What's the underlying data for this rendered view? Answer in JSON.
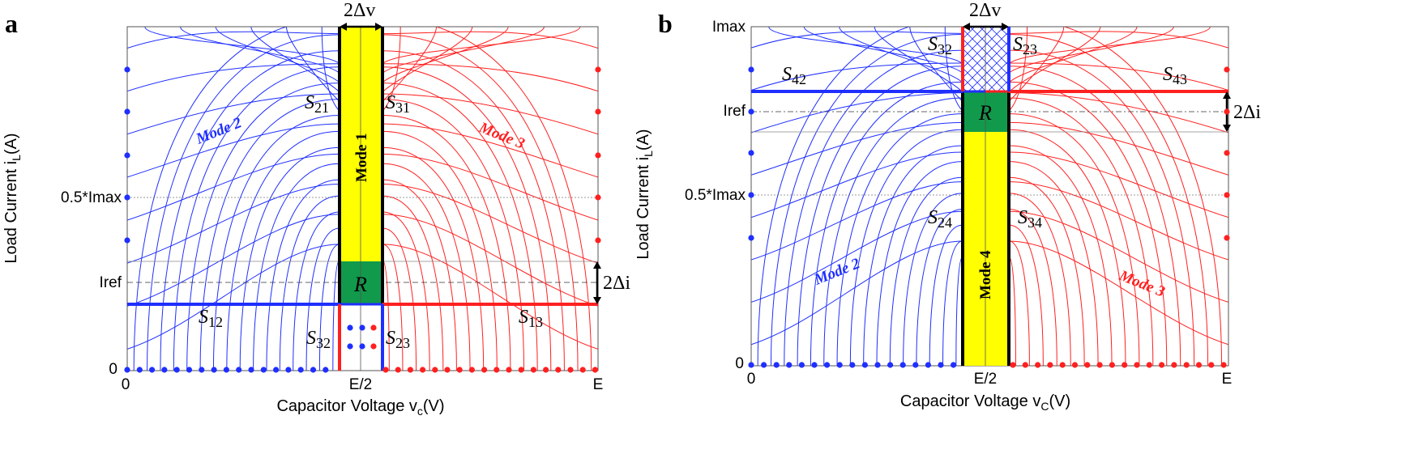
{
  "colors": {
    "blue": "#1f2fff",
    "red": "#ff2020",
    "yellow": "#ffff00",
    "green": "#119a4c",
    "black": "#000000"
  },
  "panels": [
    {
      "id": "a",
      "label": "a",
      "x_label": "Capacitor Voltage v",
      "x_label_sub": "c",
      "x_label_unit": "(V)",
      "y_label": "Load Current i",
      "y_label_sub": "L",
      "y_label_unit": "(A)",
      "x_ticks": [
        "0",
        "E/2",
        "E"
      ],
      "y_ticks": [
        "0",
        "Iref",
        "0.5*Imax"
      ],
      "band_width_label": "2Δv",
      "band_height_label": "2Δi",
      "region_label": "R",
      "center_mode": "Mode 1",
      "left_mode": "Mode 2",
      "right_mode": "Mode 3",
      "switch_labels": [
        {
          "main": "S",
          "sub": "21"
        },
        {
          "main": "S",
          "sub": "31"
        },
        {
          "main": "S",
          "sub": "12"
        },
        {
          "main": "S",
          "sub": "13"
        },
        {
          "main": "S",
          "sub": "32"
        },
        {
          "main": "S",
          "sub": "23"
        }
      ]
    },
    {
      "id": "b",
      "label": "b",
      "x_label": "Capacitor Voltage v",
      "x_label_sub": "C",
      "x_label_unit": "(V)",
      "y_label": "Load Current i",
      "y_label_sub": "L",
      "y_label_unit": "(A)",
      "x_ticks": [
        "0",
        "E/2",
        "E"
      ],
      "y_ticks": [
        "0",
        "0.5*Imax",
        "Iref",
        "Imax"
      ],
      "band_width_label": "2Δv",
      "band_height_label": "2Δi",
      "region_label": "R",
      "center_mode": "Mode 4",
      "left_mode": "Mode 2",
      "right_mode": "Mode 3",
      "switch_labels": [
        {
          "main": "S",
          "sub": "32"
        },
        {
          "main": "S",
          "sub": "23"
        },
        {
          "main": "S",
          "sub": "42"
        },
        {
          "main": "S",
          "sub": "43"
        },
        {
          "main": "S",
          "sub": "24"
        },
        {
          "main": "S",
          "sub": "34"
        }
      ]
    }
  ]
}
